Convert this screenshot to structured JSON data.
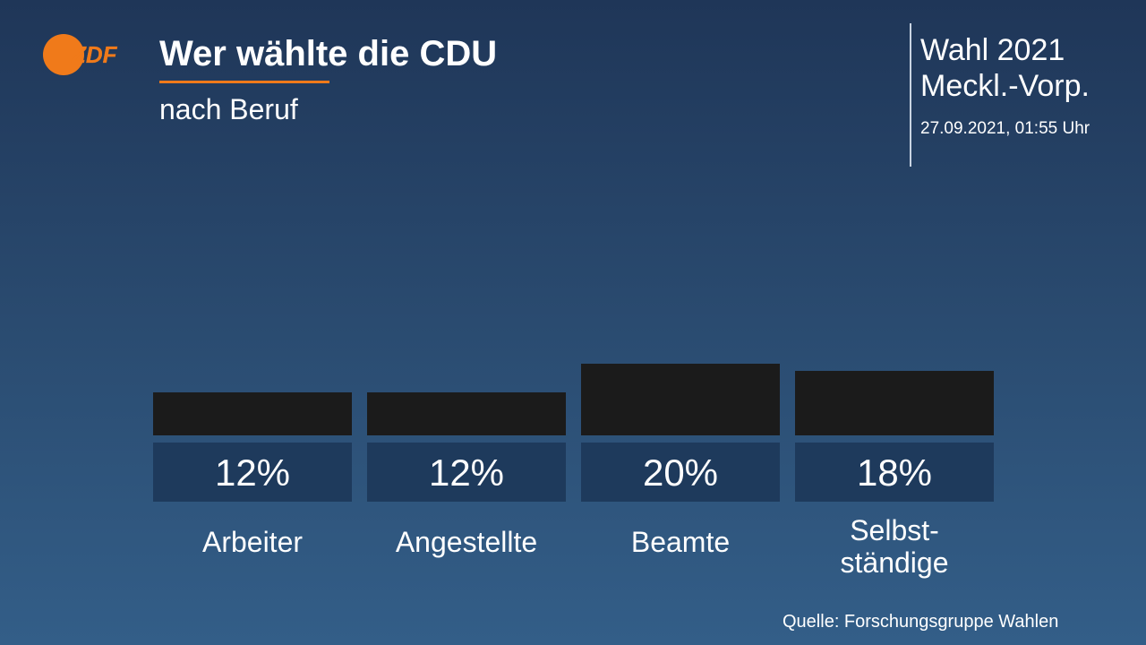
{
  "header": {
    "logo_text": "ZDF",
    "title": "Wer wählte die CDU",
    "subtitle": "nach Beruf"
  },
  "meta": {
    "line1": "Wahl 2021",
    "line2": "Meckl.-Vorp.",
    "date": "27.09.2021, 01:55 Uhr"
  },
  "source": "Quelle: Forschungsgruppe Wahlen",
  "colors": {
    "accent": "#f07a1a",
    "bar": "#1b1b1b",
    "label_box": "#1e3a5c"
  },
  "chart_data": {
    "type": "bar",
    "title": "Wer wählte die CDU",
    "subtitle": "nach Beruf",
    "categories": [
      [
        "Arbeiter"
      ],
      [
        "Angestellte"
      ],
      [
        "Beamte"
      ],
      [
        "Selbst-",
        "ständige"
      ]
    ],
    "values": [
      12,
      12,
      20,
      18
    ],
    "value_labels": [
      "12%",
      "12%",
      "20%",
      "18%"
    ],
    "unit": "%",
    "ylim": [
      0,
      100
    ],
    "grid": false
  }
}
